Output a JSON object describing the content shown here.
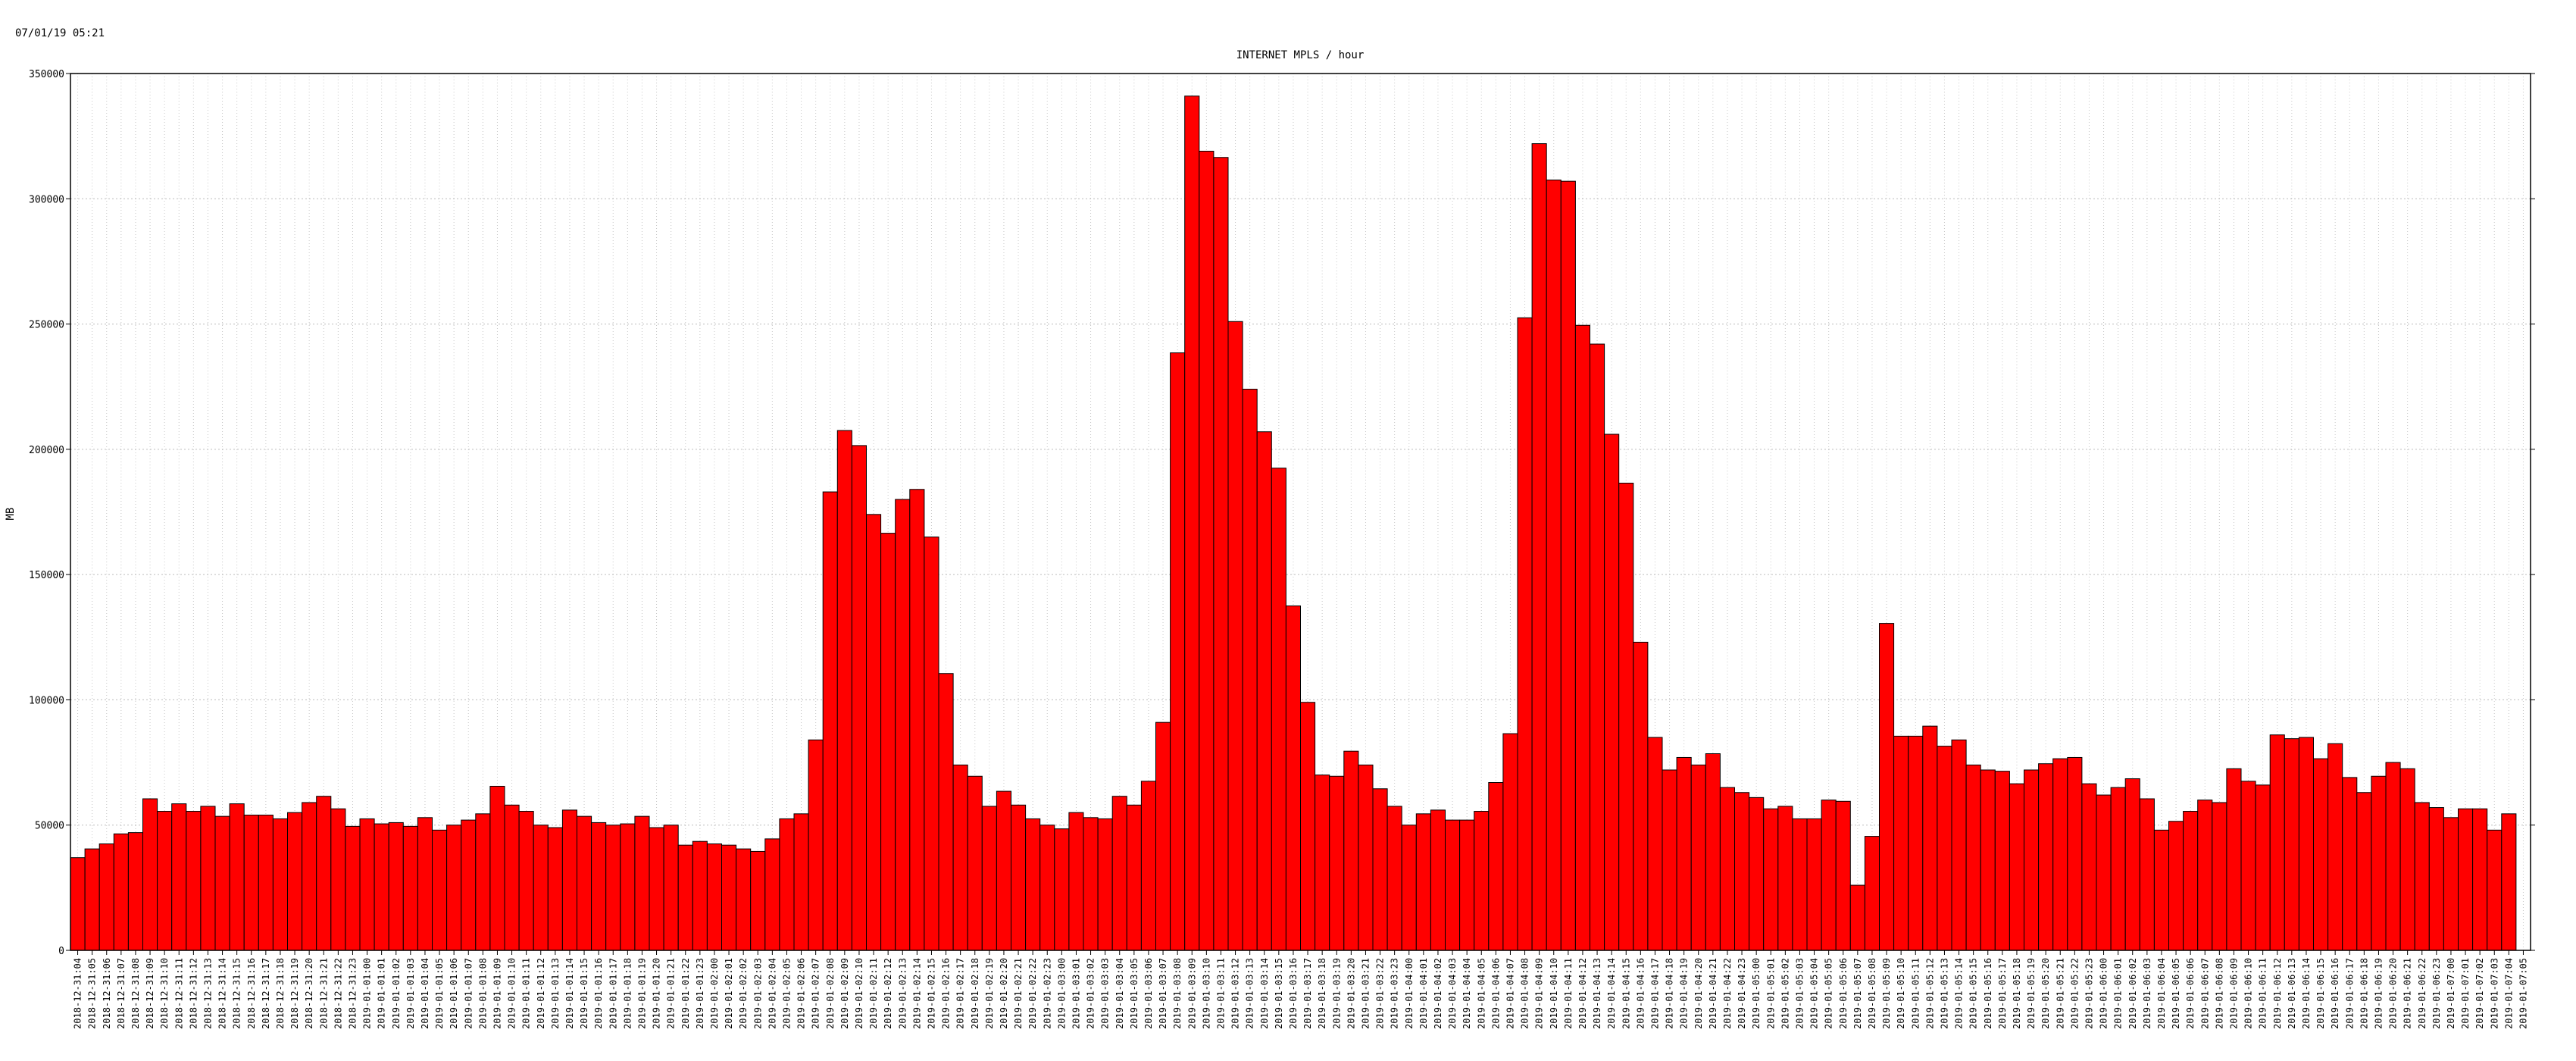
{
  "timestamp": "07/01/19 05:21",
  "chart_data": {
    "type": "bar",
    "title": "INTERNET MPLS / hour",
    "xlabel": "",
    "ylabel": "MB",
    "ylim": [
      0,
      350000
    ],
    "yticks": [
      0,
      50000,
      100000,
      150000,
      200000,
      250000,
      300000,
      350000
    ],
    "grid": true,
    "bar_color": "#ff0000",
    "categories": [
      "2018-12-31:04",
      "2018-12-31:05",
      "2018-12-31:06",
      "2018-12-31:07",
      "2018-12-31:08",
      "2018-12-31:09",
      "2018-12-31:10",
      "2018-12-31:11",
      "2018-12-31:12",
      "2018-12-31:13",
      "2018-12-31:14",
      "2018-12-31:15",
      "2018-12-31:16",
      "2018-12-31:17",
      "2018-12-31:18",
      "2018-12-31:19",
      "2018-12-31:20",
      "2018-12-31:21",
      "2018-12-31:22",
      "2018-12-31:23",
      "2019-01-01:00",
      "2019-01-01:01",
      "2019-01-01:02",
      "2019-01-01:03",
      "2019-01-01:04",
      "2019-01-01:05",
      "2019-01-01:06",
      "2019-01-01:07",
      "2019-01-01:08",
      "2019-01-01:09",
      "2019-01-01:10",
      "2019-01-01:11",
      "2019-01-01:12",
      "2019-01-01:13",
      "2019-01-01:14",
      "2019-01-01:15",
      "2019-01-01:16",
      "2019-01-01:17",
      "2019-01-01:18",
      "2019-01-01:19",
      "2019-01-01:20",
      "2019-01-01:21",
      "2019-01-01:22",
      "2019-01-01:23",
      "2019-01-02:00",
      "2019-01-02:01",
      "2019-01-02:02",
      "2019-01-02:03",
      "2019-01-02:04",
      "2019-01-02:05",
      "2019-01-02:06",
      "2019-01-02:07",
      "2019-01-02:08",
      "2019-01-02:09",
      "2019-01-02:10",
      "2019-01-02:11",
      "2019-01-02:12",
      "2019-01-02:13",
      "2019-01-02:14",
      "2019-01-02:15",
      "2019-01-02:16",
      "2019-01-02:17",
      "2019-01-02:18",
      "2019-01-02:19",
      "2019-01-02:20",
      "2019-01-02:21",
      "2019-01-02:22",
      "2019-01-02:23",
      "2019-01-03:00",
      "2019-01-03:01",
      "2019-01-03:02",
      "2019-01-03:03",
      "2019-01-03:04",
      "2019-01-03:05",
      "2019-01-03:06",
      "2019-01-03:07",
      "2019-01-03:08",
      "2019-01-03:09",
      "2019-01-03:10",
      "2019-01-03:11",
      "2019-01-03:12",
      "2019-01-03:13",
      "2019-01-03:14",
      "2019-01-03:15",
      "2019-01-03:16",
      "2019-01-03:17",
      "2019-01-03:18",
      "2019-01-03:19",
      "2019-01-03:20",
      "2019-01-03:21",
      "2019-01-03:22",
      "2019-01-03:23",
      "2019-01-04:00",
      "2019-01-04:01",
      "2019-01-04:02",
      "2019-01-04:03",
      "2019-01-04:04",
      "2019-01-04:05",
      "2019-01-04:06",
      "2019-01-04:07",
      "2019-01-04:08",
      "2019-01-04:09",
      "2019-01-04:10",
      "2019-01-04:11",
      "2019-01-04:12",
      "2019-01-04:13",
      "2019-01-04:14",
      "2019-01-04:15",
      "2019-01-04:16",
      "2019-01-04:17",
      "2019-01-04:18",
      "2019-01-04:19",
      "2019-01-04:20",
      "2019-01-04:21",
      "2019-01-04:22",
      "2019-01-04:23",
      "2019-01-05:00",
      "2019-01-05:01",
      "2019-01-05:02",
      "2019-01-05:03",
      "2019-01-05:04",
      "2019-01-05:05",
      "2019-01-05:06",
      "2019-01-05:07",
      "2019-01-05:08",
      "2019-01-05:09",
      "2019-01-05:10",
      "2019-01-05:11",
      "2019-01-05:12",
      "2019-01-05:13",
      "2019-01-05:14",
      "2019-01-05:15",
      "2019-01-05:16",
      "2019-01-05:17",
      "2019-01-05:18",
      "2019-01-05:19",
      "2019-01-05:20",
      "2019-01-05:21",
      "2019-01-05:22",
      "2019-01-05:23",
      "2019-01-06:00",
      "2019-01-06:01",
      "2019-01-06:02",
      "2019-01-06:03",
      "2019-01-06:04",
      "2019-01-06:05",
      "2019-01-06:06",
      "2019-01-06:07",
      "2019-01-06:08",
      "2019-01-06:09",
      "2019-01-06:10",
      "2019-01-06:11",
      "2019-01-06:12",
      "2019-01-06:13",
      "2019-01-06:14",
      "2019-01-06:15",
      "2019-01-06:16",
      "2019-01-06:17",
      "2019-01-06:18",
      "2019-01-06:19",
      "2019-01-06:20",
      "2019-01-06:21",
      "2019-01-06:22",
      "2019-01-06:23",
      "2019-01-07:00",
      "2019-01-07:01",
      "2019-01-07:02",
      "2019-01-07:03",
      "2019-01-07:04",
      "2019-01-07:05"
    ],
    "values": [
      37000,
      40500,
      42500,
      46500,
      47000,
      60500,
      55500,
      58500,
      55500,
      57500,
      53500,
      58500,
      54000,
      54000,
      52500,
      55000,
      59000,
      61500,
      56500,
      49500,
      52500,
      50500,
      51000,
      49500,
      53000,
      48000,
      50000,
      52000,
      54500,
      65500,
      58000,
      55500,
      50000,
      49000,
      56000,
      53500,
      51000,
      50000,
      50500,
      53500,
      49000,
      50000,
      42000,
      43500,
      42500,
      42000,
      40500,
      39500,
      44500,
      52500,
      54500,
      84000,
      183000,
      207500,
      201500,
      174000,
      166500,
      180000,
      184000,
      165000,
      110500,
      74000,
      69500,
      57500,
      63500,
      58000,
      52500,
      50000,
      48500,
      55000,
      53000,
      52500,
      61500,
      58000,
      67500,
      91000,
      238500,
      341000,
      319000,
      316500,
      251000,
      224000,
      207000,
      192500,
      137500,
      99000,
      70000,
      69500,
      79500,
      74000,
      64500,
      57500,
      50000,
      54500,
      56000,
      52000,
      52000,
      55500,
      67000,
      86500,
      252500,
      322000,
      307500,
      307000,
      249500,
      242000,
      206000,
      186500,
      123000,
      85000,
      72000,
      77000,
      74000,
      78500,
      65000,
      63000,
      61000,
      56500,
      57500,
      52500,
      52500,
      60000,
      59500,
      26000,
      45500,
      130500,
      85500,
      85500,
      89500,
      81500,
      84000,
      74000,
      72000,
      71500,
      66500,
      72000,
      74500,
      76500,
      77000,
      66500,
      62000,
      65000,
      68500,
      60500,
      48000,
      51500,
      55500,
      60000,
      59000,
      72500,
      67500,
      66000,
      86000,
      84500,
      85000,
      76500,
      82500,
      69000,
      63000,
      69500,
      75000,
      72500,
      59000,
      57000,
      53000,
      56500,
      56500,
      48000,
      54500,
      null
    ]
  }
}
